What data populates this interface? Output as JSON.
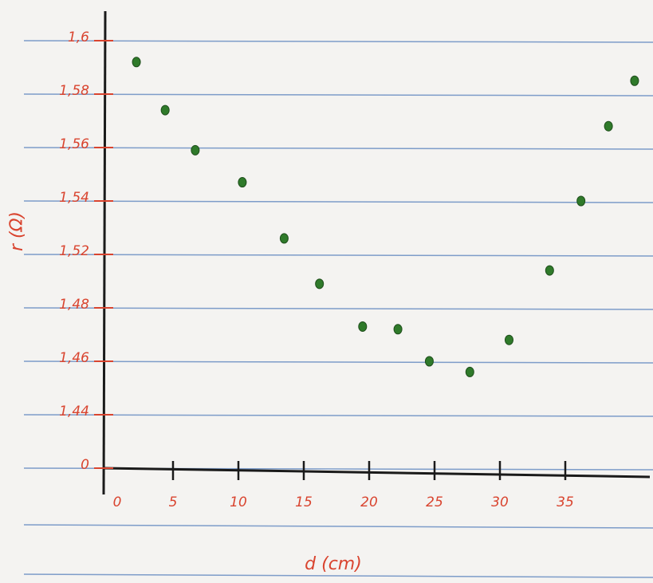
{
  "chart_data": {
    "type": "scatter",
    "x_label": "d (cm)",
    "y_label": "r (Ω)",
    "color": "#2f7a2a",
    "x": [
      2.2,
      4.4,
      6.7,
      10.3,
      13.5,
      16.2,
      19.5,
      22.2,
      24.6,
      27.7,
      30.7,
      33.8,
      36.2,
      38.3,
      40.3
    ],
    "values": [
      1.592,
      1.574,
      1.559,
      1.547,
      1.526,
      1.498,
      1.473,
      1.472,
      1.46,
      1.456,
      1.468,
      1.508,
      1.54,
      1.568,
      1.585
    ],
    "xlim": [
      0,
      41
    ],
    "ylim": [
      0,
      1.6
    ],
    "xticks": [
      0,
      5,
      10,
      15,
      20,
      25,
      30,
      35
    ],
    "yticks": [
      0,
      {
        "value": 1.44,
        "label": "1,44"
      },
      {
        "value": 1.46,
        "label": "1,46"
      },
      {
        "value": 1.48,
        "label": "1,48"
      },
      {
        "value": 1.52,
        "label": "1,52"
      },
      {
        "value": 1.54,
        "label": "1,54"
      },
      {
        "value": 1.56,
        "label": "1,56"
      },
      {
        "value": 1.58,
        "label": "1,58"
      },
      {
        "value": 1.6,
        "label": "1,6"
      }
    ]
  }
}
